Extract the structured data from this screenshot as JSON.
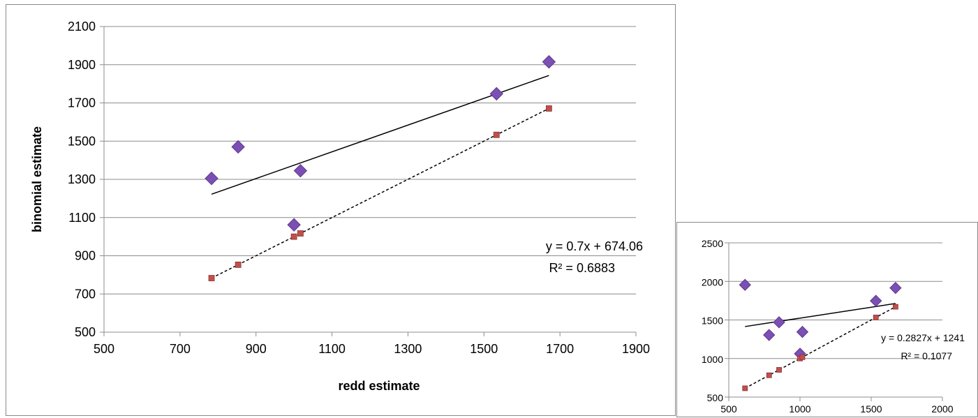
{
  "chart_data": [
    {
      "type": "scatter",
      "title": "",
      "xlabel": "redd estimate",
      "ylabel": "binomial estimate",
      "xlim": [
        500,
        1900
      ],
      "ylim": [
        500,
        2100
      ],
      "x_ticks": [
        "500",
        "700",
        "900",
        "1100",
        "1300",
        "1500",
        "1700",
        "1900"
      ],
      "y_ticks": [
        "500",
        "700",
        "900",
        "1100",
        "1300",
        "1500",
        "1700",
        "1900",
        "2100"
      ],
      "grid": true,
      "legend": "none",
      "series": [
        {
          "marker": "diamond",
          "color": "#7B4FB3",
          "points": [
            [
              783,
              1305
            ],
            [
              853,
              1470
            ],
            [
              1000,
              1062
            ],
            [
              1017,
              1345
            ],
            [
              1533,
              1748
            ],
            [
              1671,
              1915
            ]
          ]
        },
        {
          "marker": "square",
          "color": "#C0504D",
          "points": [
            [
              783,
              783
            ],
            [
              853,
              853
            ],
            [
              1000,
              1000
            ],
            [
              1017,
              1017
            ],
            [
              1533,
              1533
            ],
            [
              1671,
              1671
            ]
          ]
        }
      ],
      "trendlines": [
        {
          "style": "solid",
          "from_x": 783,
          "to_x": 1671,
          "slope": 0.7,
          "intercept": 674.06
        },
        {
          "style": "dashed",
          "from_x": 783,
          "to_x": 1671,
          "slope": 1,
          "intercept": 0
        }
      ],
      "equation": "y = 0.7x + 674.06",
      "r_squared": "R² = 0.6883"
    },
    {
      "type": "scatter",
      "title": "",
      "xlabel": "",
      "ylabel": "",
      "xlim": [
        500,
        2000
      ],
      "ylim": [
        500,
        2500
      ],
      "x_ticks": [
        "500",
        "1000",
        "1500",
        "2000"
      ],
      "y_ticks": [
        "500",
        "1000",
        "1500",
        "2000",
        "2500"
      ],
      "grid": true,
      "legend": "none",
      "series": [
        {
          "marker": "diamond",
          "color": "#7B4FB3",
          "points": [
            [
              614,
              1955
            ],
            [
              783,
              1305
            ],
            [
              853,
              1470
            ],
            [
              1000,
              1062
            ],
            [
              1017,
              1345
            ],
            [
              1533,
              1748
            ],
            [
              1671,
              1915
            ]
          ]
        },
        {
          "marker": "square",
          "color": "#C0504D",
          "points": [
            [
              614,
              614
            ],
            [
              783,
              783
            ],
            [
              853,
              853
            ],
            [
              1000,
              1000
            ],
            [
              1017,
              1017
            ],
            [
              1533,
              1533
            ],
            [
              1671,
              1671
            ]
          ]
        }
      ],
      "trendlines": [
        {
          "style": "solid",
          "from_x": 614,
          "to_x": 1671,
          "slope": 0.2827,
          "intercept": 1241
        },
        {
          "style": "dashed",
          "from_x": 614,
          "to_x": 1671,
          "slope": 1,
          "intercept": 0
        }
      ],
      "equation": "y = 0.2827x + 1241",
      "r_squared": "R² = 0.1077"
    }
  ]
}
